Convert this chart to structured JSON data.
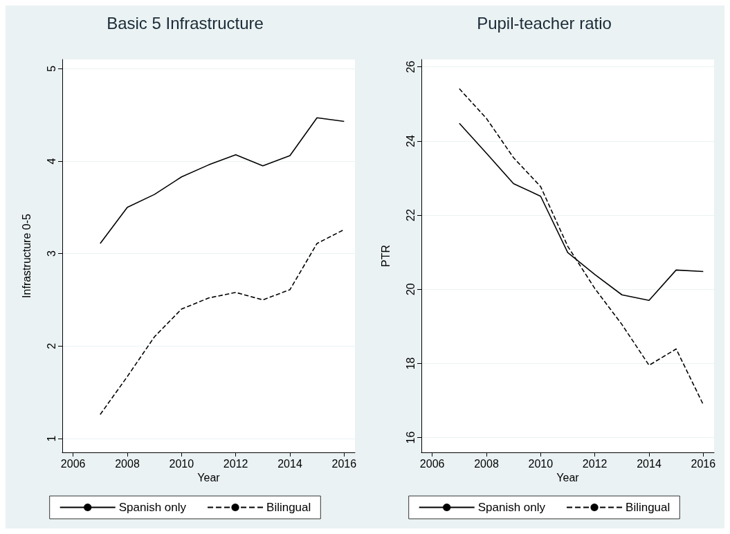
{
  "chart_data": [
    {
      "type": "line",
      "title": "Basic 5 Infrastructure",
      "xlabel": "Year",
      "ylabel": "Infrastructure 0-5",
      "x": [
        2007,
        2008,
        2009,
        2010,
        2011,
        2012,
        2013,
        2014,
        2015,
        2016
      ],
      "series": [
        {
          "name": "Spanish only",
          "color": "#000000",
          "line_style": "solid",
          "values": [
            3.11,
            3.5,
            3.64,
            3.83,
            3.96,
            4.07,
            3.95,
            4.06,
            4.47,
            4.43
          ]
        },
        {
          "name": "Bilingual",
          "color": "#000000",
          "line_style": "dashed",
          "values": [
            1.26,
            1.67,
            2.1,
            2.4,
            2.52,
            2.58,
            2.5,
            2.61,
            3.11,
            3.26
          ]
        }
      ],
      "xlim": [
        2005.6,
        2016.4
      ],
      "xticks": [
        2006,
        2008,
        2010,
        2012,
        2014,
        2016
      ],
      "ylim": [
        0.85,
        5.1
      ],
      "yticks": [
        1,
        2,
        3,
        4,
        5
      ],
      "grid": "y",
      "legend": "bottom",
      "marker": "none"
    },
    {
      "type": "line",
      "title": "Pupil-teacher ratio",
      "xlabel": "Year",
      "ylabel": "PTR",
      "x": [
        2007,
        2008,
        2009,
        2010,
        2011,
        2012,
        2013,
        2014,
        2015,
        2016
      ],
      "series": [
        {
          "name": "Spanish only",
          "color": "#000000",
          "line_style": "solid",
          "values": [
            24.48,
            23.67,
            22.85,
            22.51,
            20.99,
            20.4,
            19.85,
            19.7,
            20.52,
            20.48
          ]
        },
        {
          "name": "Bilingual",
          "color": "#000000",
          "line_style": "dashed",
          "values": [
            25.41,
            24.61,
            23.55,
            22.77,
            21.16,
            20.02,
            19.05,
            17.95,
            18.39,
            16.89
          ]
        }
      ],
      "xlim": [
        2005.6,
        2016.4
      ],
      "xticks": [
        2006,
        2008,
        2010,
        2012,
        2014,
        2016
      ],
      "ylim": [
        15.6,
        26.2
      ],
      "yticks": [
        16,
        18,
        20,
        22,
        24,
        26
      ],
      "grid": "y",
      "legend": "bottom",
      "marker": "none"
    }
  ]
}
